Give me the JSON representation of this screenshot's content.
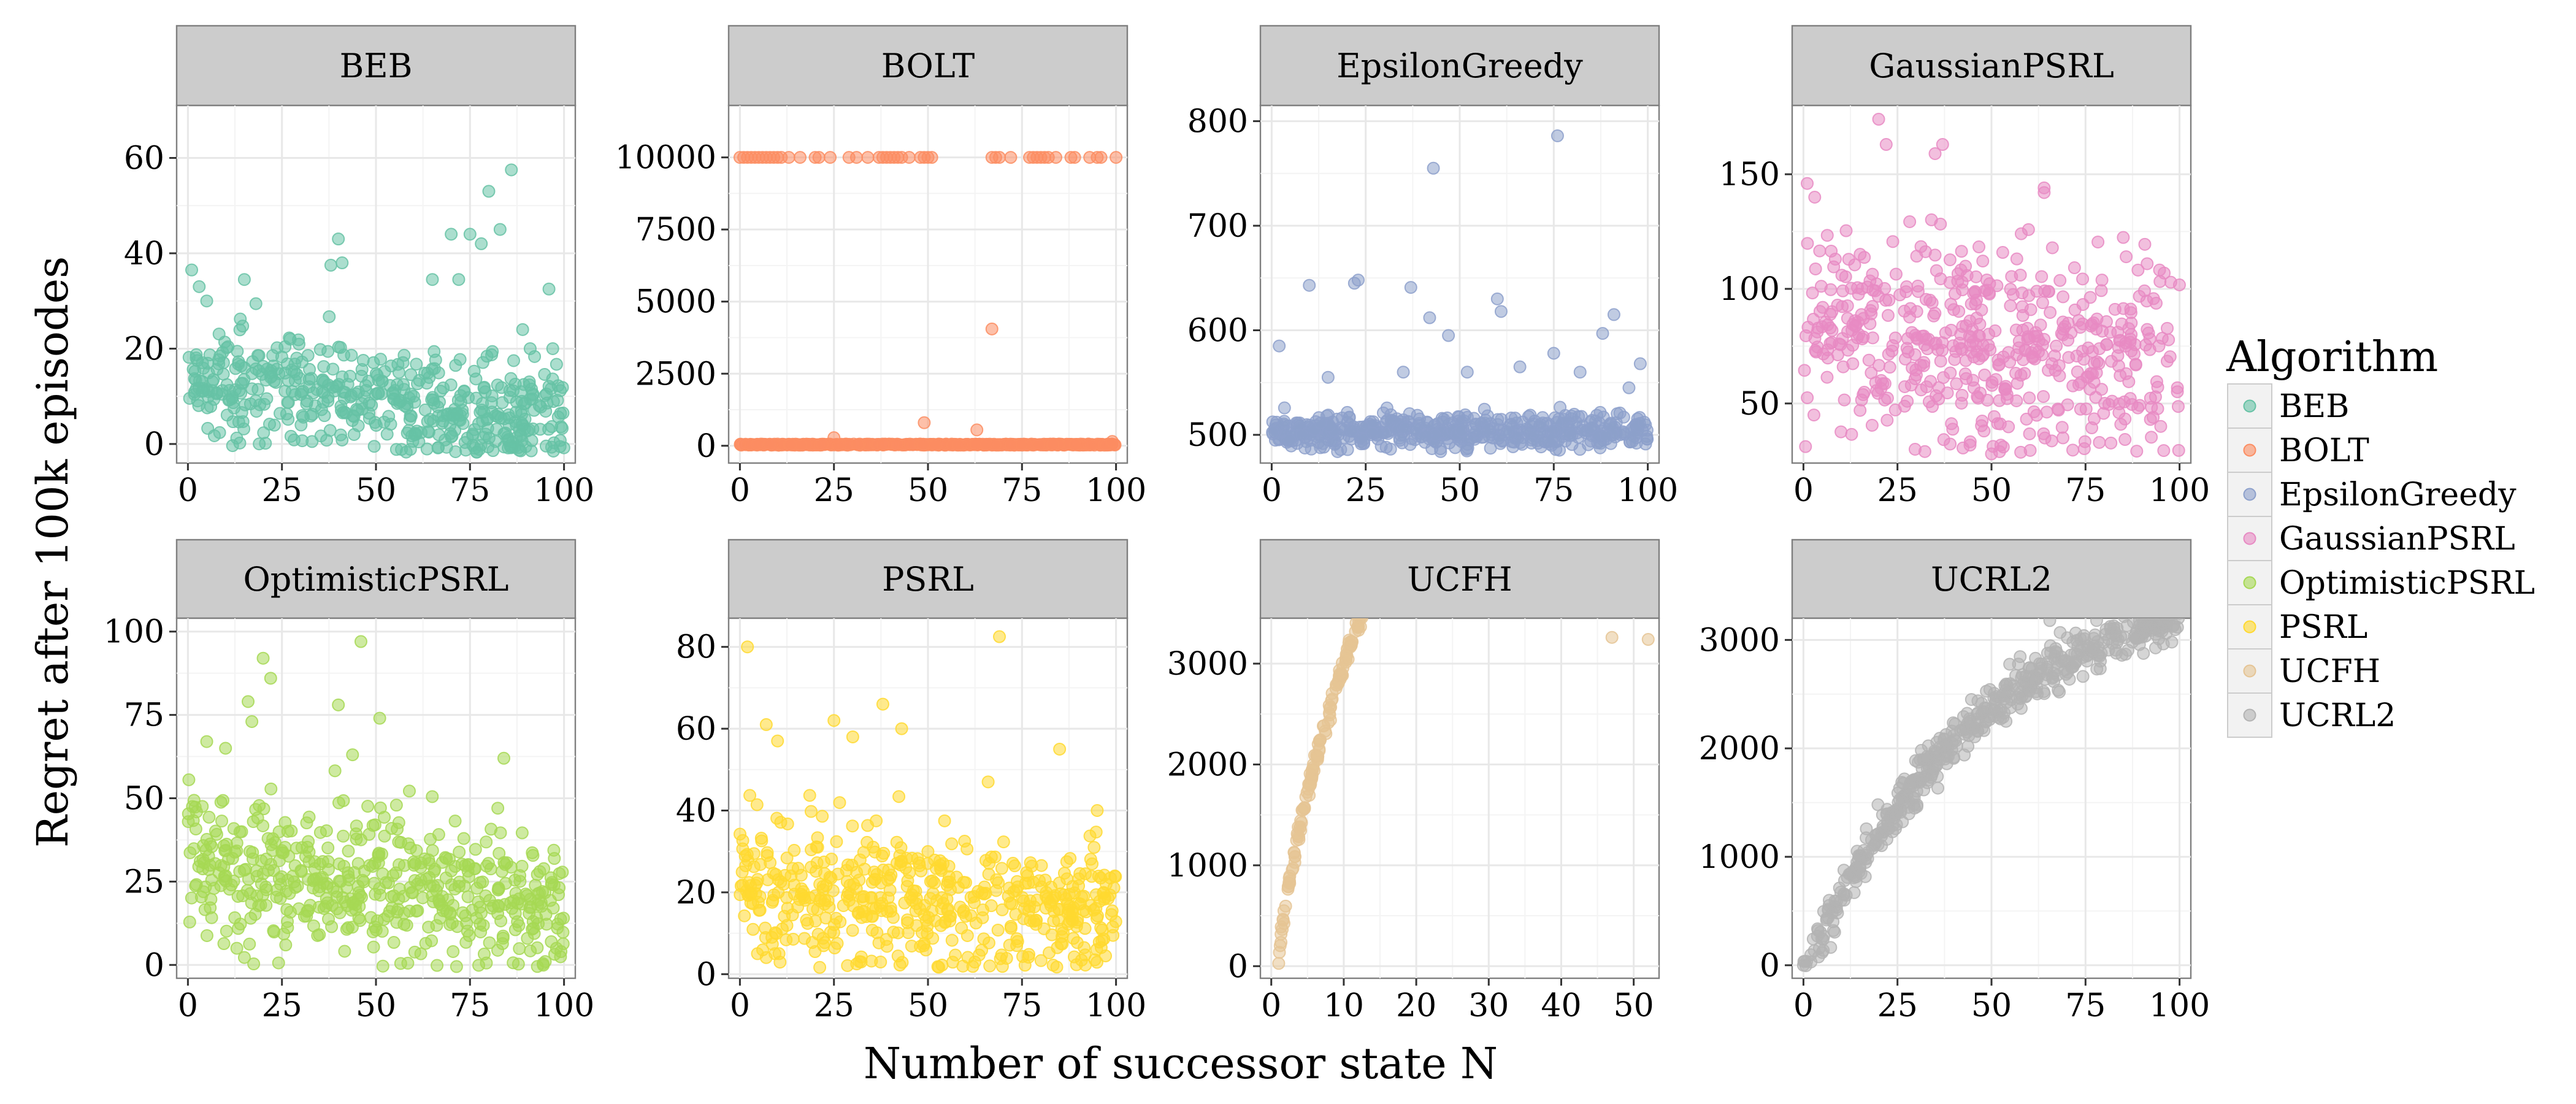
{
  "chart_data": {
    "type": "scatter",
    "xlabel": "Number of successor state N",
    "ylabel": "Regret after 100k episodes",
    "legend": {
      "title": "Algorithm",
      "position": "right",
      "entries": [
        "BEB",
        "BOLT",
        "EpsilonGreedy",
        "GaussianPSRL",
        "OptimisticPSRL",
        "PSRL",
        "UCFH",
        "UCRL2"
      ]
    },
    "panels": [
      {
        "name": "BEB",
        "color": "#66c2a5",
        "xlim": [
          -3,
          103
        ],
        "ylim": [
          -4,
          71
        ],
        "xticks": [
          0,
          25,
          50,
          75,
          100
        ],
        "yticks": [
          0,
          20,
          40,
          60
        ],
        "xtick_labels": [
          "0",
          "25",
          "50",
          "75",
          "100"
        ],
        "ytick_labels": [
          "0",
          "20",
          "40",
          "60"
        ],
        "n_points": 500,
        "trend": {
          "kind": "linear",
          "start": 13.5,
          "end": 4.5,
          "spread": 5.5
        },
        "highlights": [
          [
            1,
            36.5
          ],
          [
            3,
            33
          ],
          [
            5,
            30
          ],
          [
            15,
            34.5
          ],
          [
            38,
            37.5
          ],
          [
            40,
            43
          ],
          [
            41,
            38
          ],
          [
            65,
            34.5
          ],
          [
            70,
            44
          ],
          [
            72,
            34.5
          ],
          [
            75,
            44
          ],
          [
            78,
            42
          ],
          [
            80,
            53
          ],
          [
            83,
            45
          ],
          [
            86,
            57.5
          ],
          [
            89,
            24
          ],
          [
            91,
            20
          ],
          [
            96,
            32.5
          ],
          [
            97,
            20
          ]
        ]
      },
      {
        "name": "BOLT",
        "color": "#fc8d62",
        "xlim": [
          -3,
          103
        ],
        "ylim": [
          -600,
          11800
        ],
        "xticks": [
          0,
          25,
          50,
          75,
          100
        ],
        "yticks": [
          0,
          2500,
          5000,
          7500,
          10000
        ],
        "xtick_labels": [
          "0",
          "25",
          "50",
          "75",
          "100"
        ],
        "ytick_labels": [
          "0",
          "2500",
          "5000",
          "7500",
          "10000"
        ],
        "n_points": 0,
        "trend": null,
        "base_line": {
          "y": 40,
          "x_from": 0,
          "x_to": 100,
          "count": 480,
          "spread": 40
        },
        "top_line": {
          "y": 10000,
          "xs": [
            0,
            1,
            2,
            3,
            4,
            5,
            6,
            7,
            8,
            9,
            10,
            11,
            13,
            16,
            20,
            21,
            24,
            29,
            31,
            34,
            37,
            38,
            39,
            40,
            41,
            42,
            43,
            45,
            48,
            49,
            50,
            51,
            67,
            68,
            69,
            72,
            77,
            78,
            79,
            80,
            81,
            82,
            84,
            88,
            89,
            93,
            95,
            96,
            100
          ]
        },
        "highlights": [
          [
            25,
            280
          ],
          [
            49,
            800
          ],
          [
            63,
            550
          ],
          [
            67,
            4050
          ],
          [
            99,
            150
          ]
        ]
      },
      {
        "name": "EpsilonGreedy",
        "color": "#8da0cb",
        "xlim": [
          -3,
          103
        ],
        "ylim": [
          473,
          815
        ],
        "xticks": [
          0,
          25,
          50,
          75,
          100
        ],
        "yticks": [
          500,
          600,
          700,
          800
        ],
        "xtick_labels": [
          "0",
          "25",
          "50",
          "75",
          "100"
        ],
        "ytick_labels": [
          "500",
          "600",
          "700",
          "800"
        ],
        "n_points": 500,
        "trend": {
          "kind": "linear",
          "start": 503,
          "end": 503,
          "spread": 9
        },
        "highlights": [
          [
            2,
            585
          ],
          [
            10,
            643
          ],
          [
            15,
            555
          ],
          [
            22,
            645
          ],
          [
            23,
            648
          ],
          [
            35,
            560
          ],
          [
            37,
            641
          ],
          [
            42,
            612
          ],
          [
            43,
            755
          ],
          [
            47,
            595
          ],
          [
            52,
            560
          ],
          [
            60,
            630
          ],
          [
            61,
            618
          ],
          [
            66,
            565
          ],
          [
            75,
            578
          ],
          [
            76,
            786
          ],
          [
            82,
            560
          ],
          [
            88,
            597
          ],
          [
            91,
            615
          ],
          [
            95,
            545
          ],
          [
            98,
            568
          ]
        ]
      },
      {
        "name": "GaussianPSRL",
        "color": "#e78ac3",
        "xlim": [
          -3,
          103
        ],
        "ylim": [
          24,
          180
        ],
        "xticks": [
          0,
          25,
          50,
          75,
          100
        ],
        "yticks": [
          50,
          100,
          150
        ],
        "xtick_labels": [
          "0",
          "25",
          "50",
          "75",
          "100"
        ],
        "ytick_labels": [
          "50",
          "100",
          "150"
        ],
        "n_points": 520,
        "trend": {
          "kind": "linear",
          "start": 85,
          "end": 68,
          "spread": 22
        },
        "highlights": [
          [
            1,
            146
          ],
          [
            3,
            140
          ],
          [
            20,
            174
          ],
          [
            22,
            163
          ],
          [
            35,
            159
          ],
          [
            37,
            163
          ],
          [
            48,
            38
          ],
          [
            50,
            28
          ],
          [
            64,
            142
          ],
          [
            69,
            35
          ],
          [
            95,
            40
          ]
        ]
      },
      {
        "name": "OptimisticPSRL",
        "color": "#a6d854",
        "xlim": [
          -3,
          103
        ],
        "ylim": [
          -4,
          104
        ],
        "xticks": [
          0,
          25,
          50,
          75,
          100
        ],
        "yticks": [
          0,
          25,
          50,
          75,
          100
        ],
        "xtick_labels": [
          "0",
          "25",
          "50",
          "75",
          "100"
        ],
        "ytick_labels": [
          "0",
          "25",
          "50",
          "75",
          "100"
        ],
        "n_points": 520,
        "trend": {
          "kind": "linear",
          "start": 32,
          "end": 18,
          "spread": 11
        },
        "highlights": [
          [
            5,
            67
          ],
          [
            10,
            65
          ],
          [
            16,
            79
          ],
          [
            17,
            73
          ],
          [
            20,
            92
          ],
          [
            22,
            86
          ],
          [
            40,
            78
          ],
          [
            46,
            97
          ],
          [
            51,
            74
          ],
          [
            84,
            62
          ],
          [
            13,
            5
          ],
          [
            26,
            6
          ],
          [
            98,
            5
          ]
        ]
      },
      {
        "name": "PSRL",
        "color": "#ffd92f",
        "xlim": [
          -3,
          103
        ],
        "ylim": [
          -1,
          87
        ],
        "xticks": [
          0,
          25,
          50,
          75,
          100
        ],
        "yticks": [
          0,
          20,
          40,
          60,
          80
        ],
        "xtick_labels": [
          "0",
          "25",
          "50",
          "75",
          "100"
        ],
        "ytick_labels": [
          "0",
          "20",
          "40",
          "60",
          "80"
        ],
        "n_points": 520,
        "trend": {
          "kind": "linear",
          "start": 22,
          "end": 14,
          "spread": 8.5
        },
        "highlights": [
          [
            2,
            80
          ],
          [
            7,
            61
          ],
          [
            10,
            57
          ],
          [
            25,
            62
          ],
          [
            30,
            58
          ],
          [
            38,
            66
          ],
          [
            43,
            60
          ],
          [
            66,
            47
          ],
          [
            69,
            82.5
          ],
          [
            85,
            55
          ],
          [
            95,
            40
          ]
        ]
      },
      {
        "name": "UCFH",
        "color": "#e5c494",
        "xlim": [
          -1.5,
          53.5
        ],
        "ylim": [
          -120,
          3450
        ],
        "xticks": [
          0,
          10,
          20,
          30,
          40,
          50
        ],
        "yticks": [
          0,
          1000,
          2000,
          3000
        ],
        "xtick_labels": [
          "0",
          "10",
          "20",
          "30",
          "40",
          "50"
        ],
        "ytick_labels": [
          "0",
          "1000",
          "2000",
          "3000"
        ],
        "n_points": 480,
        "x_range": [
          1,
          47
        ],
        "trend": {
          "kind": "curve_ucfh",
          "spread": 45
        },
        "highlights": [
          [
            52,
            3240
          ],
          [
            47,
            3260
          ]
        ]
      },
      {
        "name": "UCRL2",
        "color": "#b3b3b3",
        "xlim": [
          -3,
          103
        ],
        "ylim": [
          -120,
          3200
        ],
        "xticks": [
          0,
          25,
          50,
          75,
          100
        ],
        "yticks": [
          0,
          1000,
          2000,
          3000
        ],
        "xtick_labels": [
          "0",
          "25",
          "50",
          "75",
          "100"
        ],
        "ytick_labels": [
          "0",
          "1000",
          "2000",
          "3000"
        ],
        "n_points": 520,
        "trend": {
          "kind": "curve_ucrl2",
          "spread": 110
        },
        "highlights": [
          [
            95,
            3170
          ],
          [
            2,
            30
          ],
          [
            0,
            0
          ]
        ]
      }
    ]
  }
}
